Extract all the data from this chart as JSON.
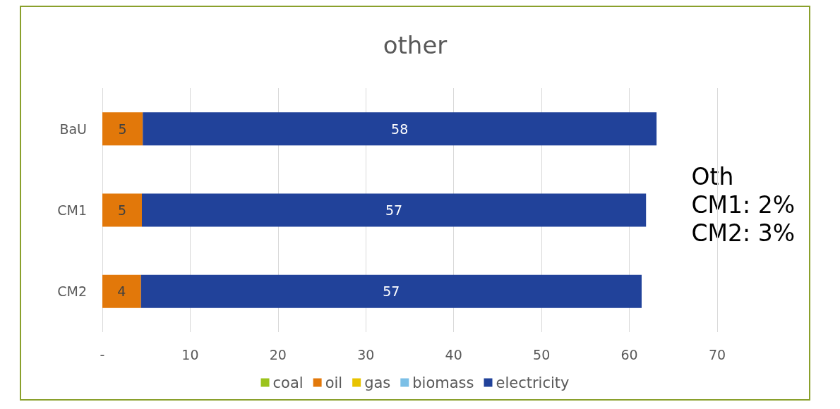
{
  "chart_data": {
    "type": "bar",
    "orientation": "horizontal",
    "stacked": true,
    "title": "other",
    "categories": [
      "BaU",
      "CM1",
      "CM2"
    ],
    "series": [
      {
        "name": "coal",
        "color": "#9bc31c",
        "values": [
          0,
          0,
          0
        ],
        "value_labels": [
          null,
          null,
          null
        ]
      },
      {
        "name": "oil",
        "color": "#e2780a",
        "values": [
          4.6,
          4.5,
          4.4
        ],
        "value_labels": [
          "5",
          "5",
          "4"
        ]
      },
      {
        "name": "gas",
        "color": "#e8c300",
        "values": [
          0,
          0,
          0
        ],
        "value_labels": [
          null,
          null,
          null
        ]
      },
      {
        "name": "biomass",
        "color": "#7bbfe6",
        "values": [
          0,
          0,
          0
        ],
        "value_labels": [
          null,
          null,
          null
        ]
      },
      {
        "name": "electricity",
        "color": "#21429a",
        "values": [
          58.5,
          57.4,
          57.0
        ],
        "value_labels": [
          "58",
          "57",
          "57"
        ]
      }
    ],
    "xlim": [
      0,
      70
    ],
    "xticks": [
      {
        "value": 0,
        "label": "-"
      },
      10,
      20,
      30,
      40,
      50,
      60,
      70
    ],
    "grid": "x",
    "legend": "bottom",
    "annotations": [
      "Oth\nCM1: 2%\nCM2: 3%"
    ]
  }
}
